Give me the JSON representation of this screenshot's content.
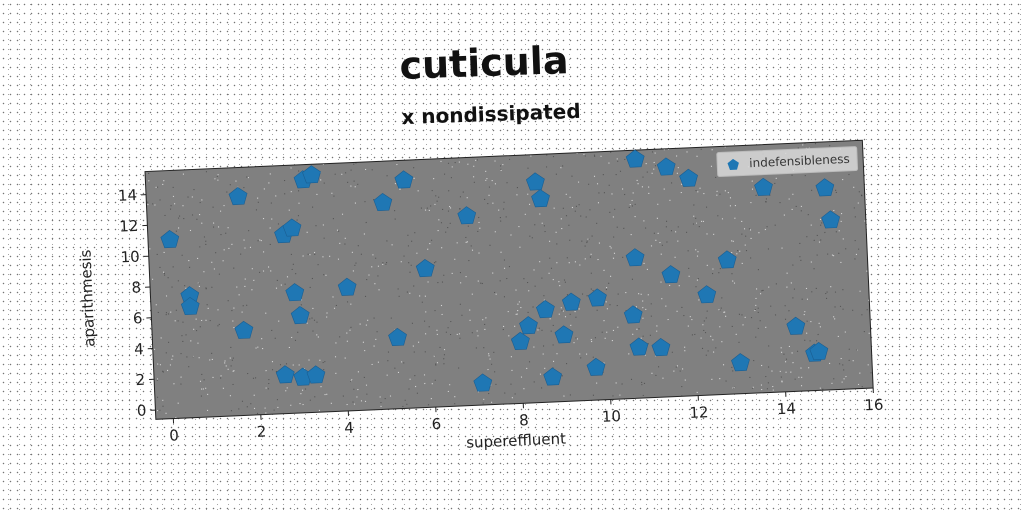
{
  "chart_data": {
    "type": "scatter",
    "title": "cuticula",
    "subtitle": "x nondissipated",
    "xlabel": "supereffluent",
    "ylabel": "aparithmesis",
    "xlim": [
      -0.4,
      16
    ],
    "ylim": [
      -0.6,
      15.5
    ],
    "xticks": [
      0,
      2,
      4,
      6,
      8,
      10,
      12,
      14,
      16
    ],
    "yticks": [
      0,
      2,
      4,
      6,
      8,
      10,
      12,
      14
    ],
    "grid": false,
    "legend_position": "top-right",
    "plot_background": "#808080",
    "series": [
      {
        "name": "indefensibleness",
        "marker": "pentagon",
        "color": "#1f77b4",
        "points": [
          [
            0.1,
            11.0
          ],
          [
            0.5,
            7.3
          ],
          [
            0.5,
            6.6
          ],
          [
            1.7,
            13.6
          ],
          [
            1.7,
            4.9
          ],
          [
            2.6,
            1.9
          ],
          [
            2.7,
            11.0
          ],
          [
            2.9,
            11.4
          ],
          [
            2.9,
            7.2
          ],
          [
            3.0,
            5.7
          ],
          [
            3.0,
            1.7
          ],
          [
            3.2,
            14.5
          ],
          [
            3.3,
            1.8
          ],
          [
            3.4,
            14.8
          ],
          [
            4.1,
            7.4
          ],
          [
            5.0,
            12.8
          ],
          [
            5.2,
            4.0
          ],
          [
            5.5,
            14.2
          ],
          [
            5.9,
            8.4
          ],
          [
            6.9,
            11.7
          ],
          [
            7.1,
            0.8
          ],
          [
            8.0,
            3.4
          ],
          [
            8.2,
            4.4
          ],
          [
            8.5,
            13.7
          ],
          [
            8.6,
            5.4
          ],
          [
            8.6,
            12.6
          ],
          [
            8.7,
            1.0
          ],
          [
            9.0,
            3.7
          ],
          [
            9.2,
            5.8
          ],
          [
            9.7,
            1.5
          ],
          [
            9.8,
            6.0
          ],
          [
            10.6,
            4.8
          ],
          [
            10.7,
            2.7
          ],
          [
            10.7,
            8.5
          ],
          [
            10.8,
            14.9
          ],
          [
            11.2,
            2.6
          ],
          [
            11.5,
            7.3
          ],
          [
            11.5,
            14.3
          ],
          [
            12.0,
            13.5
          ],
          [
            12.3,
            5.9
          ],
          [
            12.8,
            8.1
          ],
          [
            13.0,
            1.4
          ],
          [
            13.7,
            12.7
          ],
          [
            14.3,
            3.6
          ],
          [
            14.7,
            1.8
          ],
          [
            14.8,
            1.9
          ],
          [
            15.1,
            12.5
          ],
          [
            15.2,
            10.4
          ]
        ]
      }
    ]
  }
}
